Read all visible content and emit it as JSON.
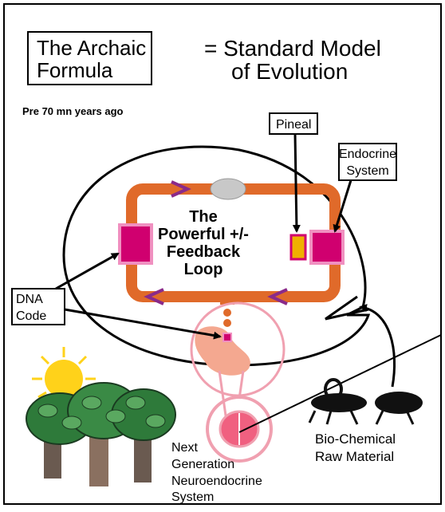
{
  "title": {
    "lines": [
      "The Archaic",
      "Formula"
    ]
  },
  "subtitle": {
    "lines": [
      "= Standard Model",
      "of Evolution"
    ]
  },
  "note": "Pre 70 mn years ago",
  "labels": {
    "pineal": "Pineal",
    "endocrine": [
      "Endocrine",
      "System"
    ],
    "loop": [
      "The",
      "Powerful +/-",
      "Feedback",
      "Loop"
    ],
    "dna": [
      "DNA",
      "Code"
    ],
    "raw_material": [
      "Bio-Chemical",
      "Raw Material"
    ],
    "next_generation": [
      "Next",
      "Generation",
      "Neuroendocrine",
      "System"
    ]
  }
}
